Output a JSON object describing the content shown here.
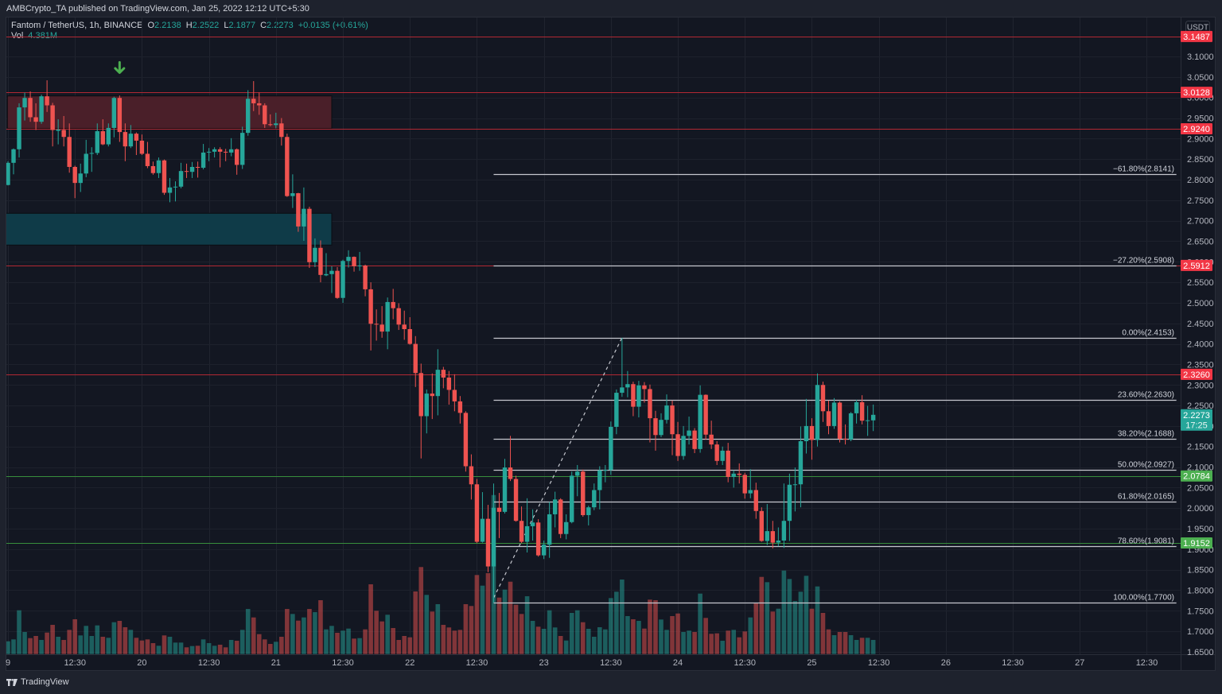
{
  "header": {
    "published": "AMBCrypto_TA published on TradingView.com, Jan 25, 2022 12:12 UTC+5:30"
  },
  "legend": {
    "symbol": "Fantom / TetherUS, 1h, BINANCE",
    "o_label": "O",
    "o": "2.2138",
    "h_label": "H",
    "h": "2.2522",
    "l_label": "L",
    "l": "2.1877",
    "c_label": "C",
    "c": "2.2273",
    "change": "+0.0135 (+0.61%)",
    "vol_label": "Vol",
    "vol": "4.381M"
  },
  "price_axis": {
    "currency": "USDT",
    "ticks": [
      "3.1000",
      "3.0500",
      "3.0000",
      "2.9500",
      "2.9000",
      "2.8500",
      "2.8000",
      "2.7500",
      "2.7000",
      "2.6500",
      "2.6000",
      "2.5500",
      "2.5000",
      "2.4500",
      "2.4000",
      "2.3500",
      "2.3000",
      "2.2500",
      "2.2000",
      "2.1500",
      "2.1000",
      "2.0500",
      "2.0000",
      "1.9500",
      "1.9000",
      "1.8500",
      "1.8000",
      "1.7500",
      "1.7000",
      "1.6500"
    ],
    "badges": [
      {
        "label": "3.1487",
        "price": 3.1487,
        "color": "#f23645"
      },
      {
        "label": "3.0128",
        "price": 3.0128,
        "color": "#f23645"
      },
      {
        "label": "2.9240",
        "price": 2.924,
        "color": "#f23645"
      },
      {
        "label": "2.5912",
        "price": 2.5912,
        "color": "#f23645"
      },
      {
        "label": "2.3260",
        "price": 2.326,
        "color": "#f23645"
      },
      {
        "label": "2.2273",
        "sub": "17:25",
        "price": 2.2273,
        "color": "#26a69a"
      },
      {
        "label": "2.0784",
        "price": 2.0784,
        "color": "#4caf50"
      },
      {
        "label": "1.9152",
        "price": 1.9152,
        "color": "#4caf50"
      }
    ]
  },
  "time_axis": {
    "ticks": [
      {
        "label": "9",
        "index": 0
      },
      {
        "label": "12:30",
        "index": 12
      },
      {
        "label": "20",
        "index": 24
      },
      {
        "label": "12:30",
        "index": 36
      },
      {
        "label": "21",
        "index": 48
      },
      {
        "label": "12:30",
        "index": 60
      },
      {
        "label": "22",
        "index": 72
      },
      {
        "label": "12:30",
        "index": 84
      },
      {
        "label": "23",
        "index": 96
      },
      {
        "label": "12:30",
        "index": 108
      },
      {
        "label": "24",
        "index": 120
      },
      {
        "label": "12:30",
        "index": 132
      },
      {
        "label": "25",
        "index": 144
      },
      {
        "label": "12:30",
        "index": 156
      },
      {
        "label": "26",
        "index": 168
      },
      {
        "label": "12:30",
        "index": 180
      },
      {
        "label": "27",
        "index": 192
      },
      {
        "label": "12:30",
        "index": 204
      }
    ]
  },
  "footer": {
    "brand": "TradingView"
  },
  "colors": {
    "up": "#26a69a",
    "down": "#ef5350",
    "volume_up": "rgba(38,166,154,0.5)",
    "volume_down": "rgba(239,83,80,0.5)",
    "level_red": "#b22833",
    "level_green": "#388e3c",
    "fib": "#c5c7ce",
    "arrow": "#4caf50",
    "zone_red": "#4a1f29",
    "zone_teal": "#0f3b48"
  },
  "chart_data": {
    "type": "candlestick",
    "title": "Fantom / TetherUS, 1h, BINANCE",
    "interval": "1h",
    "xlabel": "",
    "ylabel": "USDT",
    "ylim": [
      1.64,
      3.19
    ],
    "grid": true,
    "legend_position": "top-left",
    "candle_fields": [
      "open",
      "high",
      "low",
      "close",
      "volume_M"
    ],
    "candles": [
      [
        2.787,
        2.845,
        2.786,
        2.841,
        3.96
      ],
      [
        2.841,
        2.876,
        2.813,
        2.874,
        4.55
      ],
      [
        2.874,
        2.986,
        2.854,
        2.976,
        13.61
      ],
      [
        2.976,
        3.012,
        2.944,
        2.999,
        6.86
      ],
      [
        2.999,
        3.015,
        2.941,
        2.952,
        4.95
      ],
      [
        2.952,
        2.986,
        2.921,
        2.941,
        5.62
      ],
      [
        2.941,
        3.007,
        2.936,
        3.003,
        4.38
      ],
      [
        3.003,
        3.042,
        2.965,
        2.981,
        6.68
      ],
      [
        2.981,
        2.987,
        2.881,
        2.921,
        9.08
      ],
      [
        2.919,
        2.947,
        2.886,
        2.922,
        5.37
      ],
      [
        2.921,
        2.955,
        2.881,
        2.904,
        4.38
      ],
      [
        2.904,
        2.937,
        2.817,
        2.831,
        7.52
      ],
      [
        2.831,
        2.834,
        2.755,
        2.792,
        10.82
      ],
      [
        2.792,
        2.839,
        2.77,
        2.815,
        5.79
      ],
      [
        2.815,
        2.897,
        2.806,
        2.863,
        8.76
      ],
      [
        2.863,
        2.879,
        2.819,
        2.865,
        5.62
      ],
      [
        2.865,
        2.937,
        2.86,
        2.918,
        8.91
      ],
      [
        2.918,
        2.947,
        2.884,
        2.886,
        5.37
      ],
      [
        2.886,
        2.937,
        2.881,
        2.926,
        5.05
      ],
      [
        2.926,
        3.002,
        2.903,
        2.999,
        9.9
      ],
      [
        2.999,
        3.005,
        2.892,
        2.916,
        10.32
      ],
      [
        2.916,
        2.937,
        2.845,
        2.881,
        8.34
      ],
      [
        2.881,
        2.933,
        2.877,
        2.912,
        7.52
      ],
      [
        2.912,
        2.915,
        2.86,
        2.895,
        5.05
      ],
      [
        2.895,
        2.91,
        2.86,
        2.863,
        4.21
      ],
      [
        2.863,
        2.892,
        2.828,
        2.833,
        4.55
      ],
      [
        2.833,
        2.844,
        2.812,
        2.816,
        3.39
      ],
      [
        2.816,
        2.854,
        2.804,
        2.847,
        2.57
      ],
      [
        2.847,
        2.849,
        2.763,
        2.768,
        5.79
      ],
      [
        2.768,
        2.804,
        2.745,
        2.781,
        5.37
      ],
      [
        2.781,
        2.796,
        2.747,
        2.783,
        3.56
      ],
      [
        2.783,
        2.841,
        2.779,
        2.821,
        3.56
      ],
      [
        2.821,
        2.839,
        2.804,
        2.819,
        2.08
      ],
      [
        2.819,
        2.843,
        2.804,
        2.831,
        2.48
      ],
      [
        2.831,
        2.844,
        2.805,
        2.829,
        2.57
      ],
      [
        2.829,
        2.887,
        2.825,
        2.866,
        4.55
      ],
      [
        2.866,
        2.877,
        2.845,
        2.868,
        3.39
      ],
      [
        2.868,
        2.879,
        2.854,
        2.874,
        2.57
      ],
      [
        2.874,
        2.879,
        2.83,
        2.868,
        2.9
      ],
      [
        2.868,
        2.875,
        2.845,
        2.866,
        2.08
      ],
      [
        2.866,
        2.901,
        2.857,
        2.874,
        4.38
      ],
      [
        2.874,
        2.876,
        2.812,
        2.836,
        4.13
      ],
      [
        2.836,
        2.929,
        2.826,
        2.914,
        7.52
      ],
      [
        2.914,
        3.018,
        2.907,
        2.997,
        14.03
      ],
      [
        2.997,
        3.04,
        2.967,
        2.986,
        11.39
      ],
      [
        2.986,
        3.012,
        2.958,
        2.981,
        6.19
      ],
      [
        2.981,
        2.986,
        2.926,
        2.935,
        4.55
      ],
      [
        2.935,
        2.959,
        2.93,
        2.933,
        3.14
      ],
      [
        2.933,
        2.963,
        2.925,
        2.937,
        3.81
      ],
      [
        2.937,
        2.95,
        2.883,
        2.904,
        5.37
      ],
      [
        2.904,
        2.912,
        2.758,
        2.76,
        14.03
      ],
      [
        2.76,
        2.813,
        2.731,
        2.767,
        12.47
      ],
      [
        2.767,
        2.768,
        2.673,
        2.686,
        10.4
      ],
      [
        2.686,
        2.781,
        2.651,
        2.729,
        11.39
      ],
      [
        2.729,
        2.734,
        2.585,
        2.599,
        14.03
      ],
      [
        2.599,
        2.657,
        2.587,
        2.634,
        13.04
      ],
      [
        2.634,
        2.652,
        2.55,
        2.568,
        16.76
      ],
      [
        2.567,
        2.621,
        2.565,
        2.57,
        7.67
      ],
      [
        2.57,
        2.589,
        2.524,
        2.578,
        8.76
      ],
      [
        2.578,
        2.587,
        2.51,
        2.512,
        6.61
      ],
      [
        2.512,
        2.605,
        2.5,
        2.602,
        7.28
      ],
      [
        2.602,
        2.628,
        2.586,
        2.612,
        7.92
      ],
      [
        2.612,
        2.613,
        2.576,
        2.589,
        4.8
      ],
      [
        2.589,
        2.624,
        2.578,
        2.591,
        4.95
      ],
      [
        2.591,
        2.593,
        2.516,
        2.533,
        7.67
      ],
      [
        2.533,
        2.55,
        2.384,
        2.449,
        21.71
      ],
      [
        2.449,
        2.484,
        2.408,
        2.447,
        13.46
      ],
      [
        2.447,
        2.492,
        2.415,
        2.43,
        10.15
      ],
      [
        2.43,
        2.513,
        2.387,
        2.502,
        12.23
      ],
      [
        2.502,
        2.534,
        2.46,
        2.487,
        8.09
      ],
      [
        2.487,
        2.499,
        2.434,
        2.447,
        4.38
      ],
      [
        2.447,
        2.481,
        2.41,
        2.436,
        5.62
      ],
      [
        2.436,
        2.465,
        2.398,
        2.4,
        5.2
      ],
      [
        2.4,
        2.419,
        2.295,
        2.329,
        19.48
      ],
      [
        2.329,
        2.352,
        2.121,
        2.224,
        27.08
      ],
      [
        2.224,
        2.289,
        2.182,
        2.279,
        18.41
      ],
      [
        2.279,
        2.328,
        2.217,
        2.273,
        13.22
      ],
      [
        2.273,
        2.387,
        2.226,
        2.337,
        15.52
      ],
      [
        2.337,
        2.344,
        2.292,
        2.318,
        9.08
      ],
      [
        2.318,
        2.334,
        2.252,
        2.288,
        8.27
      ],
      [
        2.288,
        2.326,
        2.236,
        2.26,
        7.28
      ],
      [
        2.26,
        2.273,
        2.206,
        2.232,
        7.52
      ],
      [
        2.232,
        2.236,
        2.089,
        2.102,
        15.52
      ],
      [
        2.102,
        2.131,
        2.021,
        2.058,
        14.95
      ],
      [
        2.058,
        2.071,
        1.915,
        1.918,
        24.6
      ],
      [
        1.918,
        2.039,
        1.916,
        1.974,
        21.29
      ],
      [
        1.974,
        2.008,
        1.844,
        1.858,
        25.17
      ],
      [
        1.858,
        2.06,
        1.77,
        2.001,
        49.5
      ],
      [
        2.001,
        2.037,
        1.927,
        1.991,
        17.57
      ],
      [
        1.991,
        2.12,
        1.987,
        2.099,
        20.05
      ],
      [
        2.099,
        2.176,
        2.066,
        2.071,
        22.52
      ],
      [
        2.071,
        2.079,
        1.967,
        1.969,
        15.35
      ],
      [
        1.969,
        2.004,
        1.915,
        1.918,
        12.47
      ],
      [
        1.918,
        2.024,
        1.892,
        1.956,
        17.99
      ],
      [
        1.956,
        1.997,
        1.921,
        1.965,
        10.32
      ],
      [
        1.965,
        1.973,
        1.882,
        1.885,
        8.51
      ],
      [
        1.885,
        1.921,
        1.876,
        1.911,
        7.85
      ],
      [
        1.911,
        2.015,
        1.879,
        1.985,
        13.61
      ],
      [
        1.985,
        2.04,
        1.953,
        2.021,
        8.27
      ],
      [
        2.021,
        2.024,
        1.927,
        1.937,
        5.62
      ],
      [
        1.937,
        1.985,
        1.924,
        1.966,
        4.21
      ],
      [
        1.966,
        2.089,
        1.963,
        2.079,
        12.8
      ],
      [
        2.079,
        2.105,
        2.029,
        2.089,
        13.61
      ],
      [
        2.089,
        2.094,
        1.979,
        1.983,
        9.9
      ],
      [
        1.983,
        2.006,
        1.958,
        2.002,
        7.85
      ],
      [
        2.002,
        2.06,
        1.995,
        2.044,
        5.37
      ],
      [
        2.044,
        2.102,
        1.997,
        2.092,
        8.34
      ],
      [
        2.092,
        2.105,
        2.063,
        2.093,
        7.67
      ],
      [
        2.093,
        2.211,
        2.081,
        2.198,
        17.42
      ],
      [
        2.198,
        2.289,
        2.18,
        2.281,
        19.4
      ],
      [
        2.281,
        2.415,
        2.271,
        2.294,
        23.19
      ],
      [
        2.294,
        2.334,
        2.27,
        2.302,
        11.81
      ],
      [
        2.302,
        2.308,
        2.224,
        2.247,
        10.82
      ],
      [
        2.247,
        2.31,
        2.221,
        2.299,
        10.32
      ],
      [
        2.299,
        2.307,
        2.257,
        2.29,
        7.92
      ],
      [
        2.29,
        2.301,
        2.16,
        2.219,
        16.93
      ],
      [
        2.219,
        2.237,
        2.14,
        2.178,
        16.76
      ],
      [
        2.178,
        2.231,
        2.173,
        2.215,
        10.74
      ],
      [
        2.215,
        2.277,
        2.206,
        2.25,
        7.52
      ],
      [
        2.25,
        2.262,
        2.129,
        2.18,
        11.81
      ],
      [
        2.18,
        2.21,
        2.115,
        2.127,
        12.62
      ],
      [
        2.127,
        2.2,
        2.118,
        2.176,
        6.86
      ],
      [
        2.176,
        2.223,
        2.155,
        2.189,
        7.28
      ],
      [
        2.189,
        2.195,
        2.134,
        2.144,
        6.86
      ],
      [
        2.144,
        2.299,
        2.135,
        2.276,
        18.81
      ],
      [
        2.276,
        2.277,
        2.167,
        2.179,
        11.24
      ],
      [
        2.179,
        2.213,
        2.144,
        2.155,
        6.29
      ],
      [
        2.155,
        2.163,
        2.105,
        2.115,
        6.44
      ],
      [
        2.115,
        2.15,
        2.105,
        2.14,
        4.13
      ],
      [
        2.14,
        2.159,
        2.063,
        2.076,
        7.28
      ],
      [
        2.076,
        2.092,
        2.05,
        2.084,
        7.52
      ],
      [
        2.084,
        2.109,
        2.06,
        2.081,
        5.2
      ],
      [
        2.081,
        2.086,
        2.023,
        2.036,
        7.03
      ],
      [
        2.036,
        2.095,
        2.024,
        2.044,
        11.39
      ],
      [
        2.044,
        2.062,
        1.974,
        1.993,
        15.94
      ],
      [
        1.993,
        2.002,
        1.918,
        1.92,
        24.01
      ],
      [
        1.92,
        2.01,
        1.91,
        1.944,
        22.37
      ],
      [
        1.944,
        1.969,
        1.902,
        1.916,
        13.22
      ],
      [
        1.916,
        1.953,
        1.907,
        1.921,
        14.11
      ],
      [
        1.921,
        2.06,
        1.903,
        1.969,
        25.99
      ],
      [
        1.969,
        2.084,
        1.92,
        2.057,
        23.36
      ],
      [
        2.057,
        2.099,
        1.992,
        2.058,
        16.51
      ],
      [
        2.058,
        2.199,
        2.002,
        2.163,
        19.4
      ],
      [
        2.163,
        2.266,
        2.133,
        2.2,
        24.35
      ],
      [
        2.2,
        2.219,
        2.118,
        2.166,
        14.11
      ],
      [
        2.166,
        2.328,
        2.15,
        2.3,
        21.04
      ],
      [
        2.3,
        2.308,
        2.21,
        2.236,
        12.8
      ],
      [
        2.236,
        2.262,
        2.18,
        2.2,
        7.67
      ],
      [
        2.2,
        2.268,
        2.193,
        2.257,
        5.87
      ],
      [
        2.257,
        2.26,
        2.16,
        2.169,
        6.86
      ],
      [
        2.169,
        2.204,
        2.155,
        2.167,
        6.86
      ],
      [
        2.167,
        2.234,
        2.163,
        2.231,
        5.87
      ],
      [
        2.231,
        2.264,
        2.206,
        2.258,
        4.38
      ],
      [
        2.258,
        2.275,
        2.204,
        2.213,
        5.05
      ],
      [
        2.213,
        2.249,
        2.176,
        2.214,
        5.05
      ],
      [
        2.2138,
        2.2522,
        2.1877,
        2.2273,
        4.381
      ]
    ],
    "horizontal_levels": [
      {
        "price": 3.1487,
        "color": "#b22833"
      },
      {
        "price": 3.0128,
        "color": "#b22833"
      },
      {
        "price": 2.924,
        "color": "#b22833"
      },
      {
        "price": 2.5912,
        "color": "#b22833"
      },
      {
        "price": 2.326,
        "color": "#b22833"
      },
      {
        "price": 2.0784,
        "color": "#388e3c"
      },
      {
        "price": 1.9152,
        "color": "#388e3c"
      }
    ],
    "zones": [
      {
        "name": "resistance-zone",
        "from_index": -0.1,
        "to_index": 58,
        "low": 2.9245,
        "high": 3.0039,
        "color": "#4a1f29"
      },
      {
        "name": "support-zone",
        "from_index": -0.5,
        "to_index": 58,
        "low": 2.6407,
        "high": 2.7181,
        "color": "#0f3b48"
      }
    ],
    "fib_retracement": {
      "from": {
        "index": 87,
        "price": 1.77
      },
      "to": {
        "index": 110,
        "price": 2.4153
      },
      "end_index": 209.3,
      "levels": [
        {
          "label": "−61.80%(2.8141)",
          "price": 2.8141
        },
        {
          "label": "−27.20%(2.5908)",
          "price": 2.5908
        },
        {
          "label": "0.00%(2.4153)",
          "price": 2.4153
        },
        {
          "label": "23.60%(2.2630)",
          "price": 2.263
        },
        {
          "label": "38.20%(2.1688)",
          "price": 2.1688
        },
        {
          "label": "50.00%(2.0927)",
          "price": 2.0927
        },
        {
          "label": "61.80%(2.0165)",
          "price": 2.0165
        },
        {
          "label": "78.60%(1.9081)",
          "price": 1.9081
        },
        {
          "label": "100.00%(1.7700)",
          "price": 1.77
        }
      ]
    },
    "trend_line": {
      "from": {
        "index": 87,
        "price": 1.7815
      },
      "to": {
        "index": 110,
        "price": 2.4153
      },
      "style": "dashed"
    },
    "annotations": [
      {
        "type": "arrow-down",
        "index": 20,
        "price": 3.078,
        "color": "#4caf50"
      }
    ]
  }
}
